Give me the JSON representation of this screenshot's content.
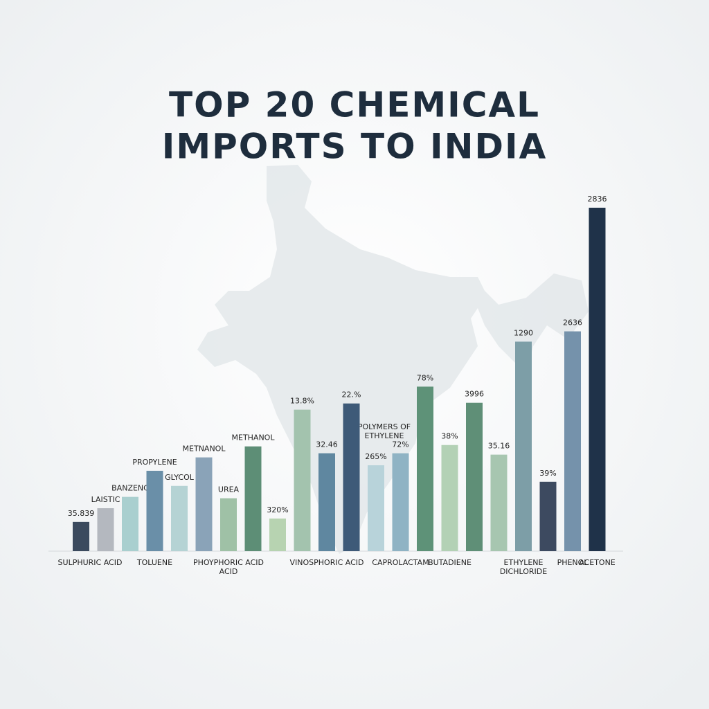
{
  "chart_data": {
    "type": "bar",
    "title": [
      "TOP 20 CHEMICAL",
      "IMPORTS TO INDIA"
    ],
    "categories": [
      "SULPHURIC ACID",
      null,
      null,
      "TOLUENE",
      null,
      null,
      [
        "PHOYPHORIC ACID",
        "ACID"
      ],
      null,
      null,
      null,
      "VINOSPHORIC ACID",
      null,
      null,
      "CAPROLACTAM",
      null,
      "BUTADIENE",
      null,
      null,
      [
        "ETHYLENE",
        "DICHLORIDE"
      ],
      null,
      "PHENOL",
      "ACETONE"
    ],
    "bar_labels": [
      "35.839",
      "LAISTIC",
      "BANZENC",
      "PROPYLENE",
      "GLYCOL",
      "METNANOL",
      "UREA",
      "METHANOL",
      "320%",
      "13.8%",
      "32.46",
      "22.%",
      "265%",
      "72%",
      "78%",
      "38%",
      "3996",
      "35.16",
      "1290",
      "39%",
      "2636",
      "2836"
    ],
    "annotation": [
      "POLYMERS OF",
      "ETHYLENE"
    ],
    "values": [
      8.5,
      12.5,
      15.8,
      23.4,
      19,
      27.3,
      15.4,
      30.5,
      9.5,
      41.2,
      28.5,
      43,
      25,
      28.5,
      47.9,
      30.9,
      43.2,
      28.1,
      61,
      20.2,
      64,
      100
    ],
    "colors": [
      "#3b4a5e",
      "#b4b8bf",
      "#a9cfcf",
      "#6a8fa8",
      "#b5d3d4",
      "#8aa3b8",
      "#9fc1a6",
      "#5d8e76",
      "#b7d3b1",
      "#a3c3ae",
      "#5f87a0",
      "#3e5a78",
      "#b8d3da",
      "#8fb3c4",
      "#5e9278",
      "#b3d1b5",
      "#5f8f77",
      "#a7c6b0",
      "#7d9ea7",
      "#3d4a60",
      "#7592ab",
      "#1f3249"
    ],
    "ylim": [
      0,
      100
    ]
  }
}
